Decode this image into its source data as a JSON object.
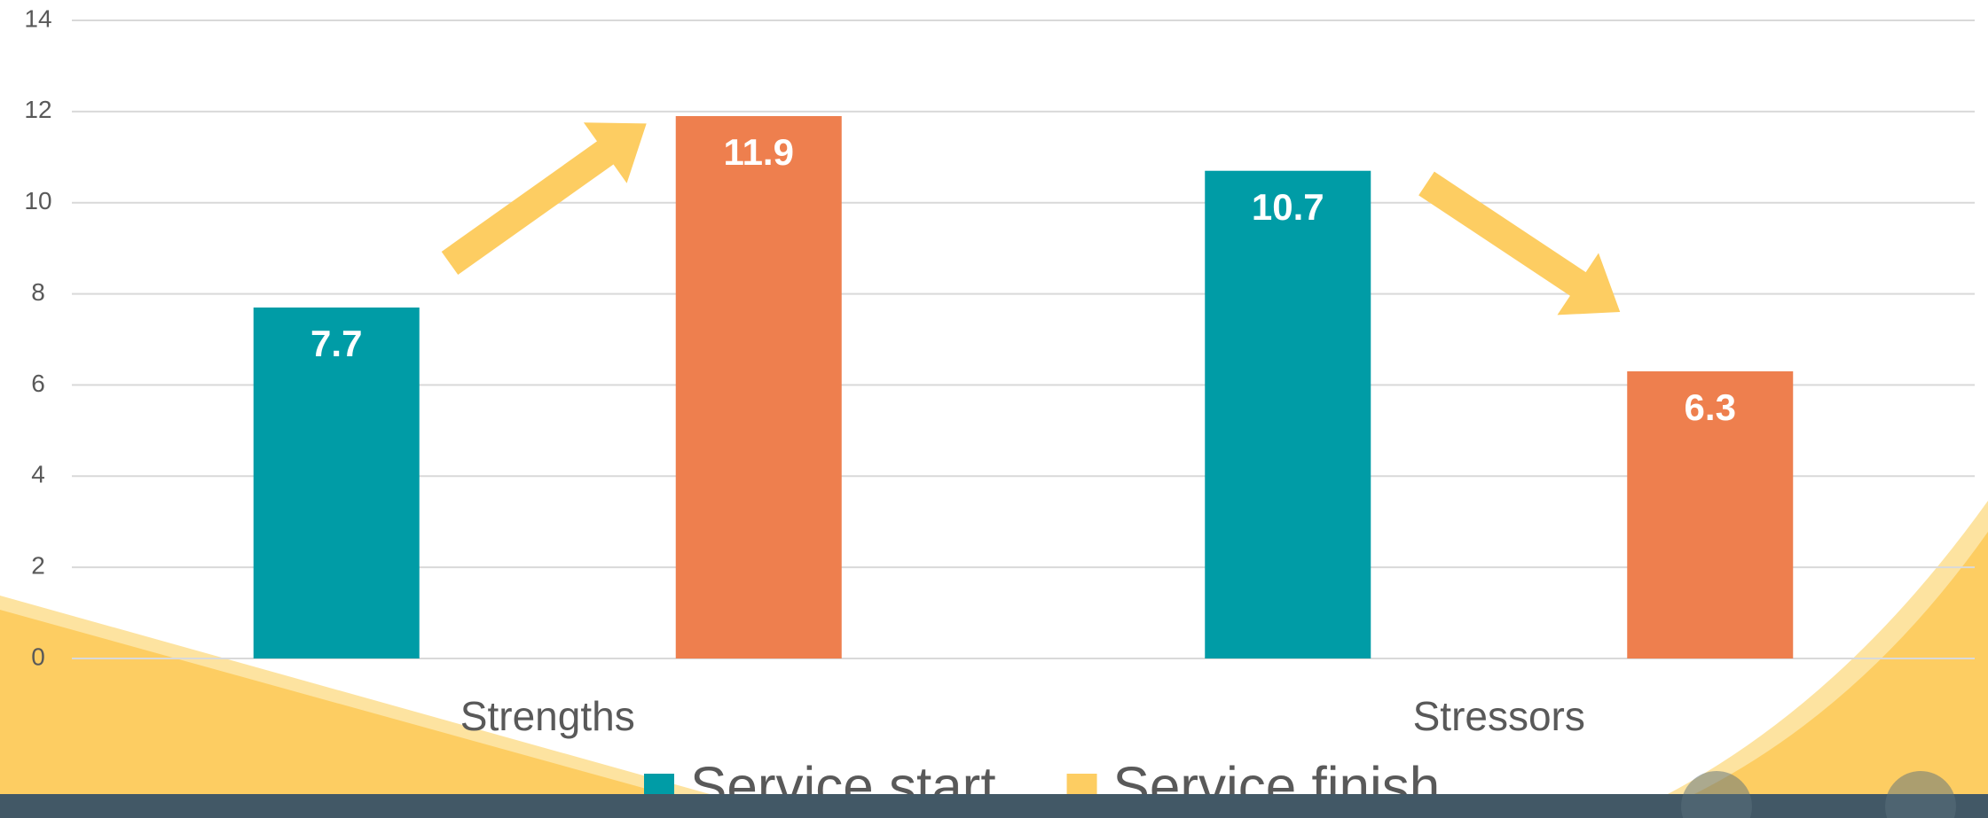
{
  "chart_data": {
    "type": "bar",
    "categories": [
      "Strengths",
      "Stressors"
    ],
    "series": [
      {
        "name": "Service start",
        "color": "#009ca6",
        "legend_color": "#009ca6",
        "values": [
          7.7,
          10.7
        ]
      },
      {
        "name": "Service finish",
        "color": "#ee7f4e",
        "legend_color": "#fdcd62",
        "values": [
          11.9,
          6.3
        ]
      }
    ],
    "ylim": [
      0,
      14
    ],
    "yticks": [
      0,
      2,
      4,
      6,
      8,
      10,
      12,
      14
    ],
    "grid": true,
    "legend": "bottom"
  }
}
